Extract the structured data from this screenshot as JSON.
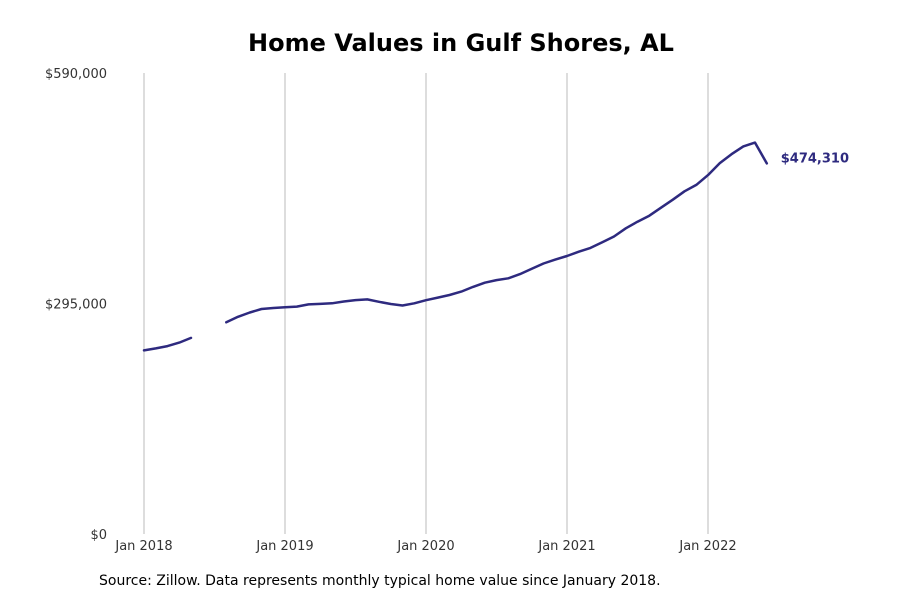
{
  "chart_data": {
    "type": "line",
    "title": "Home Values in Gulf Shores, AL",
    "xlabel": "",
    "ylabel": "",
    "x_ticks": [
      "Jan 2018",
      "Jan 2019",
      "Jan 2020",
      "Jan 2021",
      "Jan 2022"
    ],
    "y_ticks": [
      "$0",
      "$295,000",
      "$590,000"
    ],
    "ylim": [
      0,
      590000
    ],
    "grid": "vertical",
    "line_color": "#2e2a7f",
    "end_label": "$474,310",
    "series": [
      {
        "x": [
          "2018-01",
          "2018-02",
          "2018-03",
          "2018-04",
          "2018-05",
          "2018-06",
          "2018-07",
          "2018-08",
          "2018-09",
          "2018-10",
          "2018-11",
          "2018-12",
          "2019-01",
          "2019-02",
          "2019-03",
          "2019-04",
          "2019-05",
          "2019-06",
          "2019-07",
          "2019-08",
          "2019-09",
          "2019-10",
          "2019-11",
          "2019-12",
          "2020-01",
          "2020-02",
          "2020-03",
          "2020-04",
          "2020-05",
          "2020-06",
          "2020-07",
          "2020-08",
          "2020-09",
          "2020-10",
          "2020-11",
          "2020-12",
          "2021-01",
          "2021-02",
          "2021-03",
          "2021-04",
          "2021-05",
          "2021-06",
          "2021-07",
          "2021-08",
          "2021-09",
          "2021-10",
          "2021-11",
          "2021-12",
          "2022-01",
          "2022-02",
          "2022-03",
          "2022-04",
          "2022-05",
          "2022-06"
        ],
        "values": [
          235000,
          237500,
          240500,
          245000,
          251000,
          null,
          null,
          271000,
          278000,
          283500,
          288000,
          289200,
          290300,
          291000,
          293800,
          294500,
          295300,
          297600,
          299400,
          300300,
          297200,
          294400,
          292500,
          295300,
          299200,
          302600,
          305900,
          310200,
          316300,
          321600,
          324900,
          327300,
          332600,
          339600,
          346200,
          351200,
          355800,
          361300,
          366100,
          373300,
          380800,
          391300,
          399700,
          407400,
          417600,
          427800,
          438600,
          446800,
          459300,
          474700,
          486100,
          496100,
          500900,
          474310
        ]
      }
    ]
  },
  "source_note": "Source: Zillow. Data represents monthly typical home value since January 2018."
}
